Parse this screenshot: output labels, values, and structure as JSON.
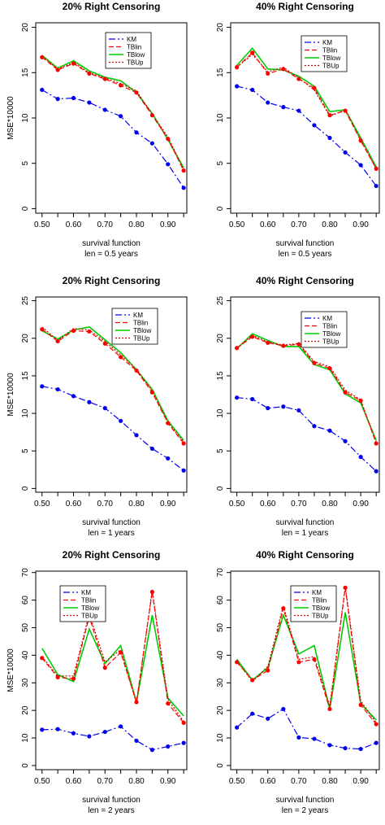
{
  "chart_data": [
    {
      "type": "line",
      "title": "20% Right Censoring",
      "xlabel": "survival function",
      "caption": "len = 0.5 years",
      "ylabel": "MSE*10000",
      "x": [
        0.5,
        0.55,
        0.6,
        0.65,
        0.7,
        0.75,
        0.8,
        0.85,
        0.9,
        0.95
      ],
      "xticks": [
        "0.50",
        "0.60",
        "0.70",
        "0.80",
        "0.90"
      ],
      "xtick_values": [
        0.5,
        0.6,
        0.7,
        0.8,
        0.9
      ],
      "xlim": [
        0.48,
        0.96
      ],
      "yticks": [
        "0",
        "5",
        "10",
        "15",
        "20"
      ],
      "ytick_values": [
        0,
        5,
        10,
        15,
        20
      ],
      "ylim": [
        -0.5,
        20.5
      ],
      "legend": "top-right",
      "series": [
        {
          "name": "KM",
          "values": [
            13.1,
            12.1,
            12.2,
            11.7,
            10.9,
            10.2,
            8.4,
            7.2,
            4.9,
            2.3
          ]
        },
        {
          "name": "TBlin",
          "values": [
            16.7,
            15.3,
            16.0,
            14.9,
            14.3,
            13.6,
            12.8,
            10.3,
            7.7,
            4.2
          ]
        },
        {
          "name": "TBlow",
          "values": [
            16.9,
            15.5,
            16.3,
            15.2,
            14.5,
            14.1,
            12.8,
            10.5,
            7.6,
            4.5
          ]
        },
        {
          "name": "TBUp",
          "values": [
            16.8,
            15.4,
            16.1,
            15.0,
            14.4,
            13.8,
            13.0,
            10.4,
            7.9,
            4.3
          ]
        }
      ]
    },
    {
      "type": "line",
      "title": "40% Right Censoring",
      "xlabel": "survival function",
      "caption": "len = 0.5 years",
      "ylabel": "",
      "x": [
        0.5,
        0.55,
        0.6,
        0.65,
        0.7,
        0.75,
        0.8,
        0.85,
        0.9,
        0.95
      ],
      "xticks": [
        "0.50",
        "0.60",
        "0.70",
        "0.80",
        "0.90"
      ],
      "xtick_values": [
        0.5,
        0.6,
        0.7,
        0.8,
        0.9
      ],
      "xlim": [
        0.48,
        0.96
      ],
      "yticks": [
        "0",
        "5",
        "10",
        "15",
        "20"
      ],
      "ytick_values": [
        0,
        5,
        10,
        15,
        20
      ],
      "ylim": [
        -0.5,
        20.5
      ],
      "legend": "top-right",
      "series": [
        {
          "name": "KM",
          "values": [
            13.5,
            13.1,
            11.7,
            11.2,
            10.8,
            9.2,
            7.8,
            6.2,
            4.8,
            2.5
          ]
        },
        {
          "name": "TBlin",
          "values": [
            15.6,
            17.2,
            14.9,
            15.4,
            14.3,
            13.3,
            10.3,
            10.8,
            7.5,
            4.4
          ]
        },
        {
          "name": "TBlow",
          "values": [
            15.8,
            17.7,
            15.4,
            15.3,
            14.6,
            13.5,
            10.7,
            10.9,
            7.8,
            4.6
          ]
        },
        {
          "name": "TBUp",
          "values": [
            15.6,
            17.0,
            15.1,
            15.6,
            14.4,
            13.1,
            10.2,
            10.9,
            7.6,
            4.4
          ]
        }
      ]
    },
    {
      "type": "line",
      "title": "20% Right Censoring",
      "xlabel": "survival function",
      "caption": "len = 1 years",
      "ylabel": "MSE*10000",
      "x": [
        0.5,
        0.55,
        0.6,
        0.65,
        0.7,
        0.75,
        0.8,
        0.85,
        0.9,
        0.95
      ],
      "xticks": [
        "0.50",
        "0.60",
        "0.70",
        "0.80",
        "0.90"
      ],
      "xtick_values": [
        0.5,
        0.6,
        0.7,
        0.8,
        0.9
      ],
      "xlim": [
        0.48,
        0.96
      ],
      "yticks": [
        "0",
        "5",
        "10",
        "15",
        "20",
        "25"
      ],
      "ytick_values": [
        0,
        5,
        10,
        15,
        20,
        25
      ],
      "ylim": [
        -0.5,
        25.5
      ],
      "legend": "top-right",
      "series": [
        {
          "name": "KM",
          "values": [
            13.6,
            13.2,
            12.3,
            11.5,
            10.7,
            9.0,
            7.1,
            5.3,
            4.0,
            2.4
          ]
        },
        {
          "name": "TBlin",
          "values": [
            21.2,
            19.6,
            21.0,
            20.9,
            19.3,
            17.5,
            15.7,
            12.8,
            8.7,
            6.0
          ]
        },
        {
          "name": "TBlow",
          "values": [
            21.0,
            19.9,
            21.1,
            21.5,
            19.8,
            18.1,
            15.8,
            13.2,
            9.0,
            6.4
          ]
        },
        {
          "name": "TBUp",
          "values": [
            21.5,
            19.7,
            21.3,
            21.1,
            19.6,
            17.8,
            15.9,
            13.0,
            8.8,
            6.2
          ]
        }
      ]
    },
    {
      "type": "line",
      "title": "40% Right Censoring",
      "xlabel": "survival function",
      "caption": "len = 1 years",
      "ylabel": "",
      "x": [
        0.5,
        0.55,
        0.6,
        0.65,
        0.7,
        0.75,
        0.8,
        0.85,
        0.9,
        0.95
      ],
      "xticks": [
        "0.50",
        "0.60",
        "0.70",
        "0.80",
        "0.90"
      ],
      "xtick_values": [
        0.5,
        0.6,
        0.7,
        0.8,
        0.9
      ],
      "xlim": [
        0.48,
        0.96
      ],
      "yticks": [
        "0",
        "5",
        "10",
        "15",
        "20",
        "25"
      ],
      "ytick_values": [
        0,
        5,
        10,
        15,
        20,
        25
      ],
      "ylim": [
        -0.5,
        25.5
      ],
      "legend": "top-right",
      "series": [
        {
          "name": "KM",
          "values": [
            12.1,
            11.9,
            10.7,
            10.9,
            10.4,
            8.3,
            7.7,
            6.3,
            4.2,
            2.3
          ]
        },
        {
          "name": "TBlin",
          "values": [
            18.7,
            20.2,
            19.4,
            19.0,
            19.2,
            16.7,
            16.0,
            12.8,
            11.7,
            6.0
          ]
        },
        {
          "name": "TBlow",
          "values": [
            18.6,
            20.6,
            19.7,
            18.9,
            18.9,
            16.5,
            15.8,
            12.6,
            11.4,
            6.4
          ]
        },
        {
          "name": "TBUp",
          "values": [
            18.7,
            20.4,
            19.5,
            19.1,
            19.3,
            16.9,
            16.2,
            13.1,
            11.8,
            6.1
          ]
        }
      ]
    },
    {
      "type": "line",
      "title": "20% Right Censoring",
      "xlabel": "survival function",
      "caption": "len = 2 years",
      "ylabel": "MSE*10000",
      "x": [
        0.5,
        0.55,
        0.6,
        0.65,
        0.7,
        0.75,
        0.8,
        0.85,
        0.9,
        0.95
      ],
      "xticks": [
        "0.50",
        "0.60",
        "0.70",
        "0.80",
        "0.90"
      ],
      "xtick_values": [
        0.5,
        0.6,
        0.7,
        0.8,
        0.9
      ],
      "xlim": [
        0.48,
        0.96
      ],
      "yticks": [
        "0",
        "10",
        "20",
        "30",
        "40",
        "50",
        "60",
        "70"
      ],
      "ytick_values": [
        0,
        10,
        20,
        30,
        40,
        50,
        60,
        70
      ],
      "ylim": [
        -1.5,
        70.5
      ],
      "legend": "top-center",
      "series": [
        {
          "name": "KM",
          "values": [
            13.0,
            13.2,
            11.7,
            10.6,
            12.2,
            14.2,
            9.0,
            5.7,
            6.9,
            8.2
          ]
        },
        {
          "name": "TBlin",
          "values": [
            39.0,
            32.0,
            31.5,
            54.0,
            35.5,
            41.0,
            23.0,
            63.0,
            22.5,
            15.5
          ]
        },
        {
          "name": "TBlow",
          "values": [
            42.5,
            33.0,
            30.5,
            49.5,
            37.0,
            43.5,
            23.0,
            54.5,
            24.5,
            18.0
          ]
        },
        {
          "name": "TBUp",
          "values": [
            39.5,
            32.5,
            32.5,
            55.0,
            37.5,
            42.0,
            22.5,
            63.5,
            24.0,
            16.0
          ]
        }
      ]
    },
    {
      "type": "line",
      "title": "40% Right Censoring",
      "xlabel": "survival function",
      "caption": "len = 2 years",
      "ylabel": "",
      "x": [
        0.5,
        0.55,
        0.6,
        0.65,
        0.7,
        0.75,
        0.8,
        0.85,
        0.9,
        0.95
      ],
      "xticks": [
        "0.50",
        "0.60",
        "0.70",
        "0.80",
        "0.90"
      ],
      "xtick_values": [
        0.5,
        0.6,
        0.7,
        0.8,
        0.9
      ],
      "xlim": [
        0.48,
        0.96
      ],
      "yticks": [
        "0",
        "10",
        "20",
        "30",
        "40",
        "50",
        "60",
        "70"
      ],
      "ytick_values": [
        0,
        10,
        20,
        30,
        40,
        50,
        60,
        70
      ],
      "ylim": [
        -1.5,
        70.5
      ],
      "legend": "top-right",
      "series": [
        {
          "name": "KM",
          "values": [
            13.8,
            18.8,
            17.0,
            20.5,
            10.2,
            9.7,
            7.4,
            6.3,
            6.0,
            8.2
          ]
        },
        {
          "name": "TBlin",
          "values": [
            37.5,
            31.0,
            34.5,
            57.0,
            37.5,
            38.5,
            20.5,
            64.5,
            22.0,
            15.0
          ]
        },
        {
          "name": "TBlow",
          "values": [
            38.5,
            31.0,
            35.5,
            54.5,
            40.5,
            43.5,
            20.5,
            55.5,
            22.5,
            16.5
          ]
        },
        {
          "name": "TBUp",
          "values": [
            38.0,
            30.5,
            36.0,
            58.0,
            38.5,
            39.5,
            21.5,
            65.0,
            23.5,
            15.5
          ]
        }
      ]
    }
  ],
  "style": {
    "KM": "#0000ee",
    "TBlin": "#ff0000",
    "TBlow": "#00cc00",
    "TBUp": "#cc0000"
  }
}
